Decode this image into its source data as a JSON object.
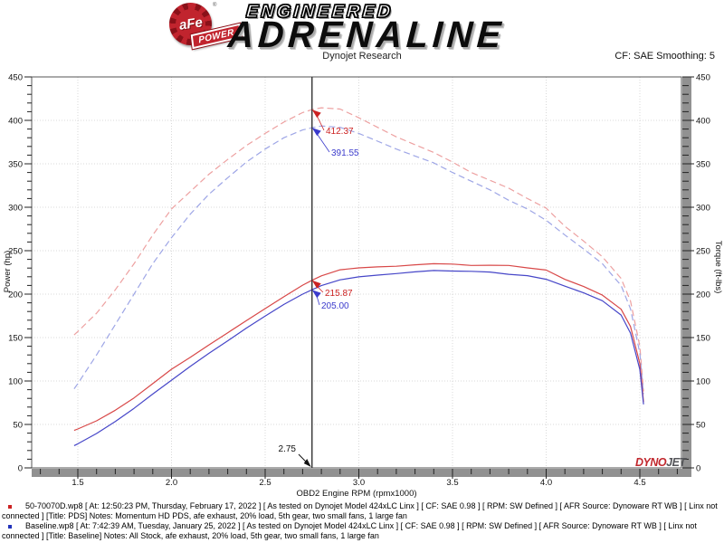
{
  "header": {
    "badge_text": "aFe",
    "badge_reg": "®",
    "badge_banner": "POWER",
    "brand_top": "ENGINEERED",
    "brand_main": "ADRENALINE",
    "subtitle": "Dynojet Research",
    "smoothing_label": "CF: SAE Smoothing: 5"
  },
  "chart_data": {
    "type": "line",
    "title": "Dynojet Research",
    "xlabel": "OBD2 Engine RPM (rpmx1000)",
    "ylabel_left": "Power (hp)",
    "ylabel_right": "Torque (ft-lbs)",
    "xlim": [
      1.25,
      4.73
    ],
    "ylim": [
      0,
      450
    ],
    "x_ticks": [
      1.5,
      2.0,
      2.5,
      3.0,
      3.5,
      4.0,
      4.5
    ],
    "x_tick_labels": [
      "1.5",
      "2.0",
      "2.5",
      "3.0",
      "3.5",
      "4.0",
      "4.5"
    ],
    "y_ticks": [
      0,
      50,
      100,
      150,
      200,
      250,
      300,
      350,
      400,
      450
    ],
    "y_minor_step": 10,
    "x_minor_step": 0.1,
    "grid": true,
    "x": [
      1.48,
      1.5,
      1.6,
      1.7,
      1.8,
      1.9,
      2.0,
      2.1,
      2.2,
      2.3,
      2.4,
      2.5,
      2.6,
      2.7,
      2.75,
      2.8,
      2.9,
      3.0,
      3.1,
      3.2,
      3.3,
      3.4,
      3.5,
      3.6,
      3.7,
      3.8,
      3.9,
      4.0,
      4.1,
      4.2,
      4.3,
      4.4,
      4.45,
      4.5,
      4.52
    ],
    "series": [
      {
        "name": "torque-pds",
        "legend": "50-70070D.wp8 Torque (ft-lbs)",
        "style": "dashed",
        "color": "#eda0a0",
        "values": [
          153,
          157,
          178,
          205,
          235,
          268,
          298,
          318,
          338,
          355,
          371,
          385,
          398,
          409,
          412.4,
          414.5,
          413,
          403,
          392,
          381,
          372,
          363,
          352,
          340,
          331,
          322,
          310,
          299,
          278,
          261,
          243,
          218,
          192,
          140,
          88
        ]
      },
      {
        "name": "torque-baseline",
        "legend": "Baseline.wp8 Torque (ft-lbs)",
        "style": "dashed",
        "color": "#9ea6e6",
        "values": [
          91,
          97,
          130,
          165,
          200,
          235,
          265,
          292,
          315,
          334,
          352,
          367,
          380,
          389,
          391.6,
          393.5,
          392,
          385,
          376,
          367,
          359,
          351,
          340,
          330,
          320,
          308,
          298,
          285,
          268,
          252,
          235,
          210,
          183,
          132,
          85
        ]
      },
      {
        "name": "power-pds",
        "legend": "50-70070D.wp8 Power (hp)",
        "style": "solid",
        "color": "#d84848",
        "values": [
          43.1,
          44.8,
          54.2,
          66.4,
          80.5,
          97.0,
          113.5,
          127.2,
          141.6,
          155.5,
          169.5,
          183.3,
          197.0,
          210.3,
          215.9,
          221.0,
          228.0,
          230.2,
          231.4,
          232.1,
          233.7,
          235.0,
          234.6,
          233.0,
          233.2,
          233.0,
          230.2,
          227.7,
          217.0,
          208.7,
          198.9,
          182.6,
          162.7,
          120.0,
          75.7
        ]
      },
      {
        "name": "power-baseline",
        "legend": "Baseline.wp8 Power (hp)",
        "style": "solid",
        "color": "#4646c8",
        "values": [
          25.6,
          27.7,
          39.6,
          53.4,
          68.5,
          85.0,
          100.9,
          116.8,
          131.9,
          146.3,
          160.9,
          174.7,
          188.1,
          200.0,
          205.0,
          209.8,
          216.5,
          219.9,
          221.9,
          223.6,
          225.6,
          227.2,
          226.6,
          226.2,
          225.4,
          222.8,
          221.3,
          217.1,
          209.2,
          201.5,
          192.4,
          175.9,
          155.1,
          113.1,
          73.1
        ]
      }
    ],
    "cursor": {
      "rpm": 2.75,
      "rpm_label": "2.75",
      "values": [
        {
          "series": "torque-pds",
          "value": 412.37,
          "label": "412.37",
          "color": "#cc2222"
        },
        {
          "series": "torque-baseline",
          "value": 391.55,
          "label": "391.55",
          "color": "#3b3bcc"
        },
        {
          "series": "power-pds",
          "value": 215.87,
          "label": "215.87",
          "color": "#cc2222"
        },
        {
          "series": "power-baseline",
          "value": 205.0,
          "label": "205.00",
          "color": "#3b3bcc"
        }
      ]
    },
    "legend_position": "bottom",
    "watermark": {
      "part1": "DYNO",
      "part2": "JET"
    }
  },
  "colors": {
    "grid": "#d9d9d9",
    "frame": "#555555",
    "axis_bar": "#919191",
    "tick": "#222222",
    "cursor_line": "#333333",
    "watermark_part1": "#c1272d",
    "watermark_part2": "#55565a",
    "legend_bullet_1": "#cc2222",
    "legend_bullet_2": "#2233bb"
  },
  "legend": [
    {
      "text": "50-70070D.wp8 [ At: 12:50:23 PM, Thursday, February 17, 2022 ] [ As tested on Dynojet Model 424xLC Linx ] [ CF: SAE 0.98 ] [ RPM: SW Defined ] [ AFR Source: Dynoware RT WB ] [ Linx not connected ] [Title: PDS]  Notes: Momentum HD PDS, afe exhaust, 20% load, 5th gear, two small fans, 1 large fan"
    },
    {
      "text": "Baseline.wp8 [ At: 7:42:39 AM, Tuesday, January 25, 2022 ] [ As tested on Dynojet Model 424xLC Linx ] [ CF: SAE 0.98 ] [ RPM: SW Defined ] [ AFR Source: Dynoware RT WB ] [ Linx not connected ] [Title: Baseline]  Notes: All Stock, afe exhaust, 20% load, 5th gear, two small fans, 1 large fan"
    }
  ]
}
